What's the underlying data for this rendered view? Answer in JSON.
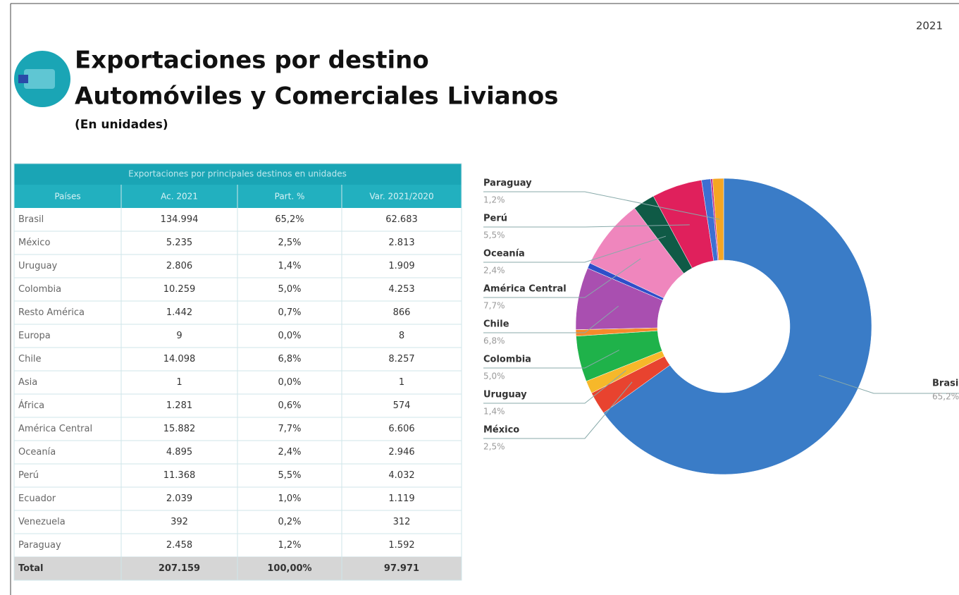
{
  "header": {
    "year": "2021",
    "title_line1": "Exportaciones por destino",
    "title_line2": "Automóviles y Comerciales Livianos",
    "subtitle": "(En unidades)"
  },
  "table": {
    "caption": "Exportaciones por principales destinos en unidades",
    "columns": [
      "Países",
      "Ac. 2021",
      "Part. %",
      "Var. 2021/2020"
    ],
    "rows": [
      [
        "Brasil",
        "134.994",
        "65,2%",
        "62.683"
      ],
      [
        "México",
        "5.235",
        "2,5%",
        "2.813"
      ],
      [
        "Uruguay",
        "2.806",
        "1,4%",
        "1.909"
      ],
      [
        "Colombia",
        "10.259",
        "5,0%",
        "4.253"
      ],
      [
        "Resto América",
        "1.442",
        "0,7%",
        "866"
      ],
      [
        "Europa",
        "9",
        "0,0%",
        "8"
      ],
      [
        "Chile",
        "14.098",
        "6,8%",
        "8.257"
      ],
      [
        "Asia",
        "1",
        "0,0%",
        "1"
      ],
      [
        "África",
        "1.281",
        "0,6%",
        "574"
      ],
      [
        "América Central",
        "15.882",
        "7,7%",
        "6.606"
      ],
      [
        "Oceanía",
        "4.895",
        "2,4%",
        "2.946"
      ],
      [
        "Perú",
        "11.368",
        "5,5%",
        "4.032"
      ],
      [
        "Ecuador",
        "2.039",
        "1,0%",
        "1.119"
      ],
      [
        "Venezuela",
        "392",
        "0,2%",
        "312"
      ],
      [
        "Paraguay",
        "2.458",
        "1,2%",
        "1.592"
      ]
    ],
    "total": [
      "Total",
      "207.159",
      "100,00%",
      "97.971"
    ]
  },
  "chart_data": {
    "type": "donut",
    "categories": [
      "Brasil",
      "México",
      "Uruguay",
      "Colombia",
      null,
      null,
      "Chile",
      null,
      null,
      "América Central",
      "Oceanía",
      "Perú",
      null,
      null,
      "Paraguay"
    ],
    "values": [
      65.2,
      2.5,
      1.4,
      5.0,
      0.7,
      0.0,
      6.8,
      0.0,
      0.6,
      7.7,
      2.4,
      5.5,
      1.0,
      0.2,
      1.2
    ],
    "value_labels": [
      "65,2%",
      "2,5%",
      "1,4%",
      "5,0%",
      null,
      null,
      "6,8%",
      null,
      null,
      "7,7%",
      "2,4%",
      "5,5%",
      null,
      null,
      "1,2%"
    ],
    "colors": [
      "#3a7cc7",
      "#e8432f",
      "#f6b82a",
      "#1fb24a",
      "#f58a2b",
      "#aaaaaa",
      "#a94fb0",
      "#999999",
      "#2f4fc9",
      "#ef86bd",
      "#0f5a46",
      "#e0205c",
      "#3d6fd2",
      "#c02b8b",
      "#f5a623"
    ]
  }
}
